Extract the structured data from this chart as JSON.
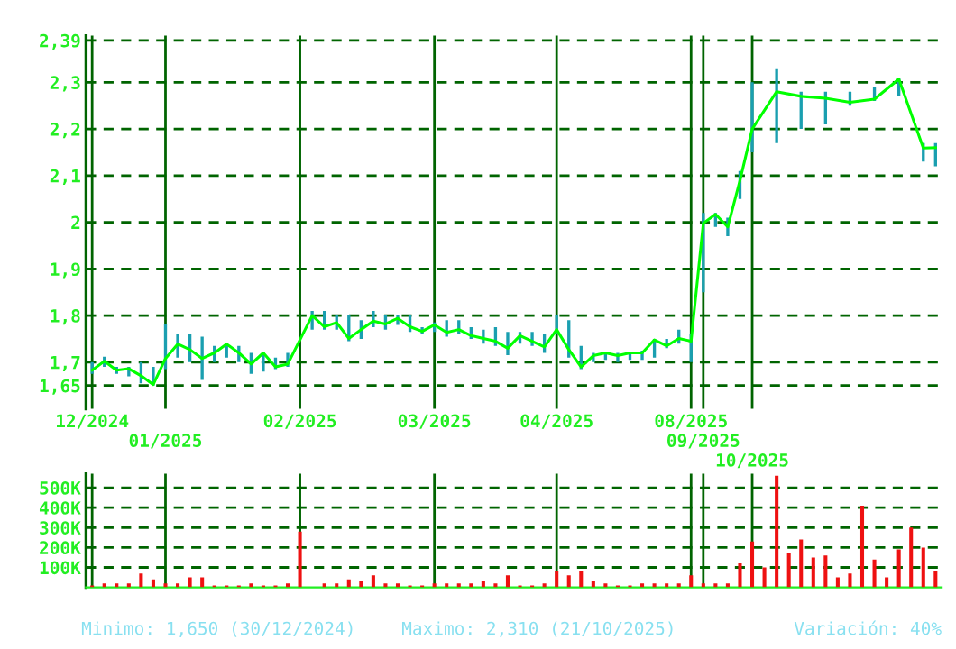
{
  "chart_data": [
    {
      "type": "line",
      "categories": [
        "12/2024",
        null,
        null,
        null,
        null,
        null,
        "01/2025",
        null,
        null,
        null,
        null,
        null,
        null,
        null,
        null,
        null,
        null,
        "02/2025",
        null,
        null,
        null,
        null,
        null,
        null,
        null,
        null,
        null,
        null,
        "03/2025",
        null,
        null,
        null,
        null,
        null,
        null,
        null,
        null,
        null,
        "04/2025",
        null,
        null,
        null,
        null,
        null,
        null,
        null,
        null,
        null,
        null,
        "08/2025",
        "09/2025",
        null,
        null,
        null,
        "10/2025",
        null,
        null,
        null,
        null,
        null,
        null,
        null,
        null,
        null,
        null,
        null,
        null,
        null,
        null,
        null
      ],
      "series": [
        {
          "color": "#00ff00",
          "values": [
            1.683,
            1.702,
            1.683,
            1.686,
            1.671,
            1.652,
            1.708,
            1.739,
            1.727,
            1.708,
            1.72,
            1.739,
            1.72,
            1.696,
            1.72,
            1.69,
            1.696,
            null,
            1.8,
            1.776,
            1.785,
            1.751,
            1.77,
            1.788,
            1.782,
            1.794,
            1.776,
            1.766,
            1.78,
            1.764,
            1.77,
            1.757,
            1.751,
            1.745,
            1.73,
            1.757,
            1.745,
            1.733,
            1.77,
            1.727,
            1.69,
            1.714,
            1.72,
            1.714,
            1.72,
            1.72,
            1.748,
            1.735,
            1.751,
            1.745,
            1.998,
            2.017,
            1.99,
            2.09,
            2.2,
            null,
            2.28,
            null,
            2.27,
            null,
            2.266,
            null,
            2.257,
            null,
            2.264,
            null,
            2.307,
            null,
            2.159,
            2.16
          ],
          "errors": [
            [
              1.675,
              1.7
            ],
            [
              1.69,
              1.712
            ],
            [
              1.675,
              1.69
            ],
            [
              1.67,
              1.69
            ],
            [
              1.655,
              1.7
            ],
            [
              1.65,
              1.69
            ],
            [
              1.685,
              1.782
            ],
            [
              1.71,
              1.76
            ],
            [
              1.7,
              1.76
            ],
            [
              1.662,
              1.755
            ],
            [
              1.7,
              1.735
            ],
            [
              1.71,
              1.74
            ],
            [
              1.7,
              1.735
            ],
            [
              1.675,
              1.72
            ],
            [
              1.68,
              1.72
            ],
            [
              1.685,
              1.71
            ],
            [
              1.69,
              1.72
            ],
            null,
            [
              1.77,
              1.81
            ],
            [
              1.77,
              1.81
            ],
            [
              1.77,
              1.8
            ],
            [
              1.745,
              1.8
            ],
            [
              1.75,
              1.79
            ],
            [
              1.775,
              1.81
            ],
            [
              1.77,
              1.8
            ],
            [
              1.78,
              1.8
            ],
            [
              1.765,
              1.8
            ],
            [
              1.76,
              1.775
            ],
            [
              1.765,
              1.785
            ],
            [
              1.755,
              1.79
            ],
            [
              1.76,
              1.79
            ],
            [
              1.75,
              1.775
            ],
            [
              1.74,
              1.77
            ],
            [
              1.735,
              1.775
            ],
            [
              1.715,
              1.765
            ],
            [
              1.74,
              1.765
            ],
            [
              1.735,
              1.765
            ],
            [
              1.72,
              1.76
            ],
            [
              1.76,
              1.8
            ],
            [
              1.71,
              1.79
            ],
            [
              1.685,
              1.735
            ],
            [
              1.7,
              1.72
            ],
            [
              1.705,
              1.72
            ],
            [
              1.7,
              1.72
            ],
            [
              1.705,
              1.72
            ],
            [
              1.705,
              1.725
            ],
            [
              1.71,
              1.75
            ],
            [
              1.73,
              1.75
            ],
            [
              1.74,
              1.77
            ],
            [
              1.7,
              1.76
            ],
            [
              1.85,
              2.02
            ],
            [
              1.99,
              2.02
            ],
            [
              1.97,
              2.01
            ],
            [
              2.05,
              2.11
            ],
            [
              2.15,
              2.3
            ],
            null,
            [
              2.17,
              2.33
            ],
            null,
            [
              2.2,
              2.28
            ],
            null,
            [
              2.21,
              2.28
            ],
            null,
            [
              2.25,
              2.28
            ],
            null,
            [
              2.26,
              2.29
            ],
            null,
            [
              2.27,
              2.31
            ],
            null,
            [
              2.13,
              2.17
            ],
            [
              2.12,
              2.17
            ]
          ]
        }
      ],
      "ylim": [
        1.6,
        2.4
      ],
      "yticks": [
        {
          "value": 1.65,
          "label": "1,65"
        },
        {
          "value": 1.7,
          "label": "1,7"
        },
        {
          "value": 1.8,
          "label": "1,8"
        },
        {
          "value": 1.9,
          "label": "1,9"
        },
        2,
        {
          "value": 2.1,
          "label": "2,1"
        },
        {
          "value": 2.2,
          "label": "2,2"
        },
        {
          "value": 2.3,
          "label": "2,3"
        },
        {
          "value": 2.39,
          "label": "2,39"
        }
      ],
      "grid": true
    },
    {
      "type": "bar",
      "categories": [
        null,
        null,
        null,
        null,
        null,
        null,
        null,
        null,
        null,
        null,
        null,
        null,
        null,
        null,
        null,
        null,
        null,
        null,
        null,
        null,
        null,
        null,
        null,
        null,
        null,
        null,
        null,
        null,
        null,
        null,
        null,
        null,
        null,
        null,
        null,
        null,
        null,
        null,
        null,
        null,
        null,
        null,
        null,
        null,
        null,
        null,
        null,
        null,
        null,
        null,
        null,
        null,
        null,
        null,
        null,
        null,
        null,
        null,
        null,
        null,
        null,
        null,
        null,
        null,
        null,
        null,
        null,
        null,
        null,
        null
      ],
      "values": [
        10,
        20,
        20,
        20,
        70,
        40,
        20,
        20,
        50,
        50,
        10,
        10,
        10,
        20,
        10,
        10,
        20,
        280,
        null,
        20,
        20,
        40,
        30,
        60,
        20,
        20,
        10,
        10,
        20,
        20,
        20,
        20,
        30,
        20,
        60,
        10,
        10,
        20,
        80,
        60,
        80,
        30,
        20,
        10,
        10,
        20,
        20,
        20,
        20,
        60,
        20,
        20,
        20,
        120,
        230,
        100,
        560,
        170,
        240,
        150,
        160,
        50,
        70,
        410,
        140,
        50,
        190,
        300,
        200,
        80
      ],
      "color": "#ee1111",
      "ylim": [
        0,
        570
      ],
      "yticks": [
        {
          "value": 100,
          "label": "100K"
        },
        {
          "value": 200,
          "label": "200K"
        },
        {
          "value": 300,
          "label": "300K"
        },
        {
          "value": 400,
          "label": "400K"
        },
        {
          "value": 500,
          "label": "500K"
        }
      ],
      "grid": true,
      "tick_labels": "y",
      "annotations": [
        "Minimo: 1,650 (30/12/2024)",
        "Maximo: 2,310 (21/10/2025)",
        "Variación: 40%"
      ]
    }
  ]
}
